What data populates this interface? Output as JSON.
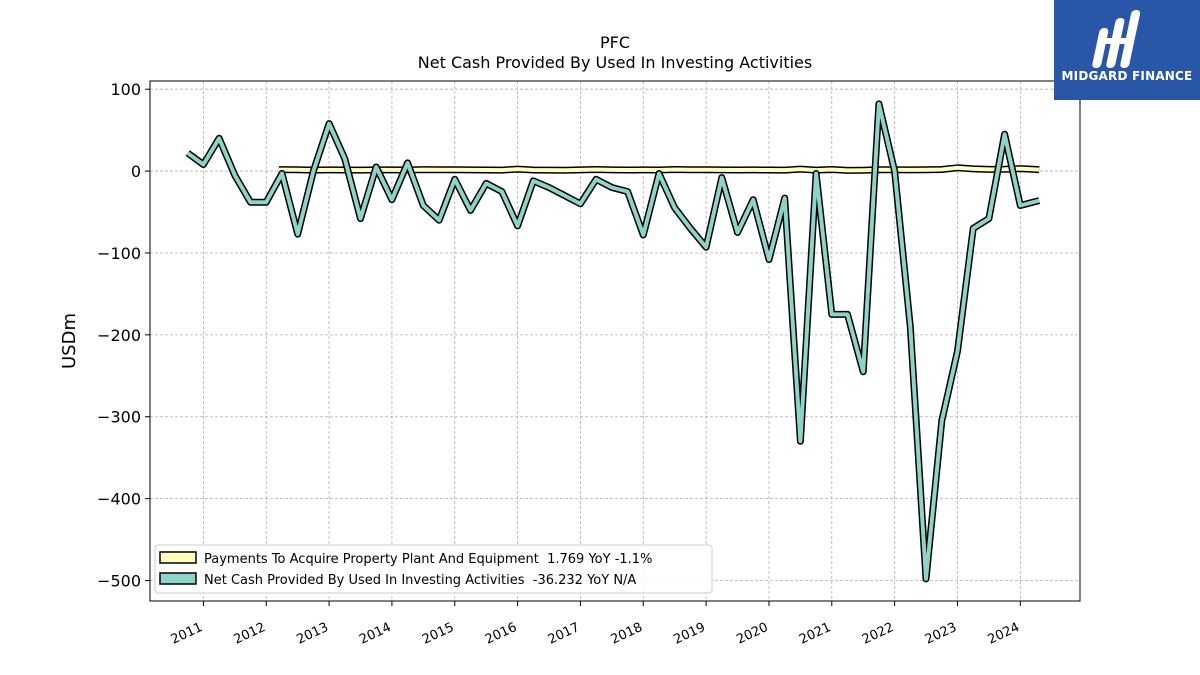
{
  "logo": {
    "text": "MIDGARD FINANCE",
    "background": "#2a56a8"
  },
  "chart_data": {
    "type": "line",
    "title": "PFC",
    "subtitle": "Net Cash Provided By Used In Investing Activities",
    "ylabel": "USDm",
    "xlabel": "",
    "ylim": [
      -525,
      110
    ],
    "xlim": [
      2010.15,
      2024.95
    ],
    "yticks": [
      100,
      0,
      -100,
      -200,
      -300,
      -400,
      -500
    ],
    "ytick_labels": [
      "100",
      "0",
      "−100",
      "−200",
      "−300",
      "−400",
      "−500"
    ],
    "xticks": [
      2011,
      2012,
      2013,
      2014,
      2015,
      2016,
      2017,
      2018,
      2019,
      2020,
      2021,
      2022,
      2023,
      2024
    ],
    "xtick_labels": [
      "2011",
      "2012",
      "2013",
      "2014",
      "2015",
      "2016",
      "2017",
      "2018",
      "2019",
      "2020",
      "2021",
      "2022",
      "2023",
      "2024"
    ],
    "grid": true,
    "legend_position": "bottom-left",
    "series": [
      {
        "name": "Payments To Acquire Property Plant And Equipment  1.769 YoY -1.1%",
        "color": "#ffffbf",
        "x": [
          2012.2,
          2012.5,
          2012.75,
          2013.0,
          2013.25,
          2013.5,
          2013.75,
          2014.0,
          2014.25,
          2014.5,
          2014.75,
          2015.0,
          2015.25,
          2015.5,
          2015.75,
          2016.0,
          2016.25,
          2016.5,
          2016.75,
          2017.0,
          2017.25,
          2017.5,
          2017.75,
          2018.0,
          2018.25,
          2018.5,
          2018.75,
          2019.0,
          2019.25,
          2019.5,
          2019.75,
          2020.0,
          2020.25,
          2020.5,
          2020.75,
          2021.0,
          2021.25,
          2021.5,
          2021.75,
          2022.0,
          2022.25,
          2022.5,
          2022.75,
          2023.0,
          2023.25,
          2023.5,
          2023.75,
          2024.0,
          2024.3
        ],
        "values": [
          1.8,
          1.6,
          1.2,
          1.5,
          1.3,
          1.2,
          1.4,
          1.4,
          1.3,
          1.8,
          1.6,
          1.6,
          1.5,
          1.3,
          1.2,
          2.4,
          1.3,
          1.2,
          1.1,
          1.5,
          1.9,
          1.4,
          1.3,
          1.4,
          1.3,
          1.9,
          1.6,
          1.6,
          1.4,
          1.3,
          1.4,
          1.3,
          1.2,
          2.4,
          1.2,
          1.9,
          0.8,
          1.1,
          1.6,
          1.6,
          1.5,
          1.7,
          1.9,
          4.0,
          2.7,
          2.0,
          2.2,
          3.0,
          1.8
        ]
      },
      {
        "name": "Net Cash Provided By Used In Investing Activities  -36.232 YoY N/A",
        "color": "#8dd3c7",
        "x": [
          2010.75,
          2011.0,
          2011.25,
          2011.5,
          2011.75,
          2012.0,
          2012.25,
          2012.5,
          2012.75,
          2013.0,
          2013.25,
          2013.5,
          2013.75,
          2014.0,
          2014.25,
          2014.5,
          2014.75,
          2015.0,
          2015.25,
          2015.5,
          2015.75,
          2016.0,
          2016.25,
          2016.5,
          2016.75,
          2017.0,
          2017.25,
          2017.5,
          2017.75,
          2018.0,
          2018.25,
          2018.5,
          2018.75,
          2019.0,
          2019.25,
          2019.5,
          2019.75,
          2020.0,
          2020.25,
          2020.5,
          2020.75,
          2021.0,
          2021.25,
          2021.5,
          2021.75,
          2022.0,
          2022.25,
          2022.5,
          2022.75,
          2023.0,
          2023.25,
          2023.5,
          2023.75,
          2024.0,
          2024.3
        ],
        "values": [
          22,
          8,
          40,
          -5,
          -38,
          -38,
          -3,
          -77,
          0,
          58,
          15,
          -58,
          5,
          -35,
          10,
          -42,
          -60,
          -10,
          -48,
          -15,
          -25,
          -67,
          -12,
          -20,
          -30,
          -40,
          -10,
          -20,
          -25,
          -78,
          -3,
          -45,
          -70,
          -93,
          -8,
          -75,
          -35,
          -108,
          -33,
          -330,
          -3,
          -175,
          -175,
          -245,
          82,
          0,
          -190,
          -498,
          -305,
          -220,
          -70,
          -58,
          45,
          -42,
          -36
        ]
      }
    ]
  }
}
